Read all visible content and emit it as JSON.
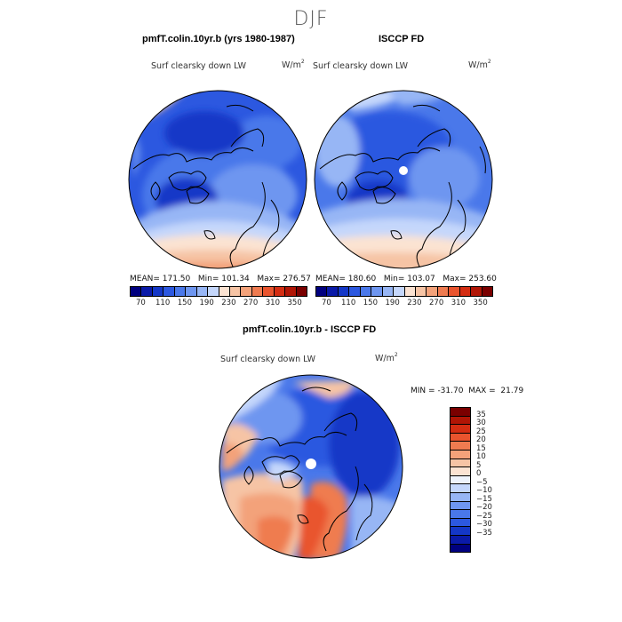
{
  "figure": {
    "season": "DJF",
    "panel_left": {
      "title": "pmfT.colin.10yr.b (yrs 1980-1987)",
      "variable": "Surf clearsky down LW",
      "units": "W/m",
      "units_exp": "2",
      "mean_label": "MEAN=",
      "mean": "171.50",
      "min_label": "Min=",
      "min": "101.34",
      "max_label": "Max=",
      "max": "276.57"
    },
    "panel_right": {
      "title": "ISCCP FD",
      "variable": "Surf clearsky down LW",
      "units": "W/m",
      "units_exp": "2",
      "mean_label": "MEAN=",
      "mean": "180.60",
      "min_label": "Min=",
      "min": "103.07",
      "max_label": "Max=",
      "max": "253.60"
    },
    "panel_diff": {
      "title": "pmfT.colin.10yr.b - ISCCP FD",
      "variable": "Surf clearsky down LW",
      "units": "W/m",
      "units_exp": "2",
      "min_label": "MIN =",
      "min": "-31.70",
      "max_label": "MAX =",
      "max": "21.79"
    },
    "colorbar_abs": {
      "ticks": [
        "70",
        "110",
        "150",
        "190",
        "230",
        "270",
        "310",
        "350"
      ],
      "colors": [
        "#00007f",
        "#0a1aa8",
        "#1437c7",
        "#2c58e0",
        "#4a78ea",
        "#6e96f0",
        "#97b6f5",
        "#c5d7fb",
        "#fbe3d2",
        "#f6c4a5",
        "#f3a27a",
        "#ef7b50",
        "#e9542e",
        "#d42d12",
        "#b01505",
        "#7a0000"
      ]
    },
    "colorbar_diff": {
      "ticks": [
        "35",
        "30",
        "25",
        "20",
        "15",
        "10",
        "5",
        "0",
        "−5",
        "−10",
        "−15",
        "−20",
        "−25",
        "−30",
        "−35"
      ],
      "colors": [
        "#7a0000",
        "#b01505",
        "#d42d12",
        "#e9542e",
        "#ef7b50",
        "#f3a27a",
        "#f6c4a5",
        "#fbe3d2",
        "#eef3fb",
        "#c5d7fb",
        "#97b6f5",
        "#6e96f0",
        "#4a78ea",
        "#2c58e0",
        "#1437c7",
        "#0a1aa8",
        "#00007f"
      ]
    }
  }
}
